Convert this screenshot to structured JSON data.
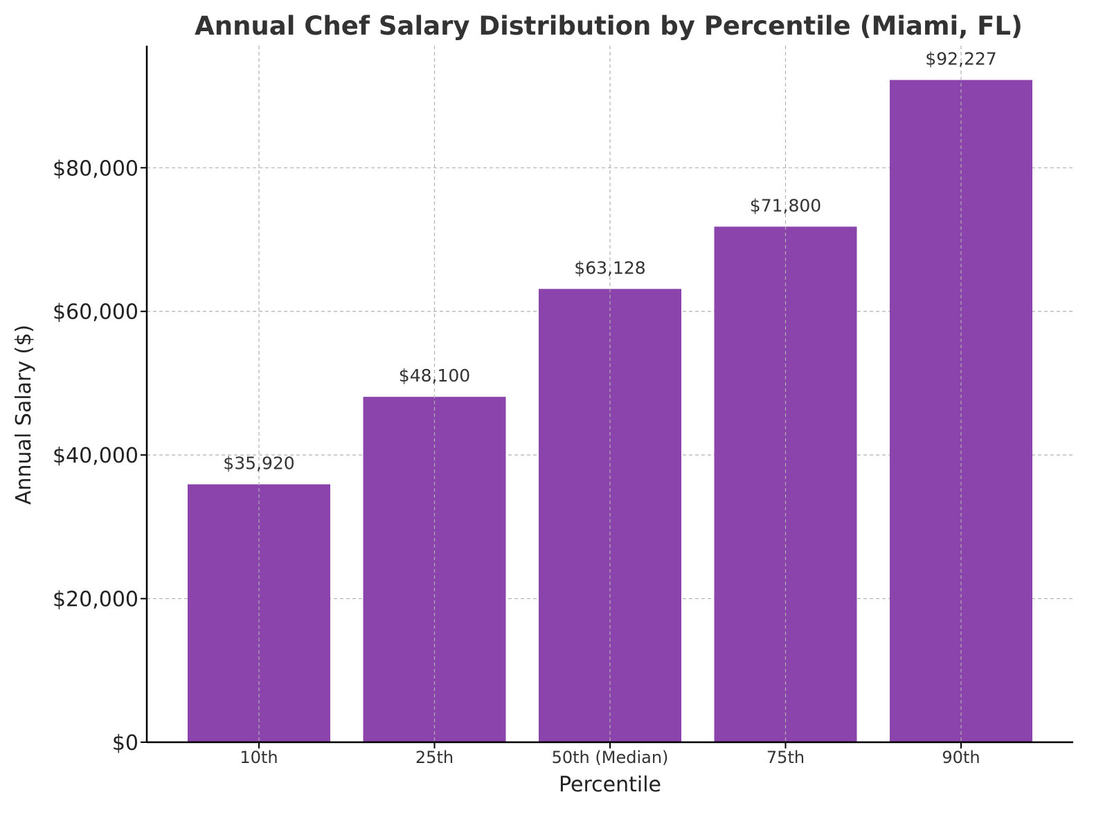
{
  "chart_data": {
    "type": "bar",
    "title": "Annual Chef Salary Distribution by Percentile (Miami, FL)",
    "xlabel": "Percentile",
    "ylabel": "Annual Salary ($)",
    "categories": [
      "10th",
      "25th",
      "50th (Median)",
      "75th",
      "90th"
    ],
    "values": [
      35920,
      48100,
      63128,
      71800,
      92227
    ],
    "data_labels": [
      "$35,920",
      "$48,100",
      "$63,128",
      "$71,800",
      "$92,227"
    ],
    "yticks": [
      0,
      20000,
      40000,
      60000,
      80000
    ],
    "ytick_labels": [
      "$0",
      "$20,000",
      "$40,000",
      "$60,000",
      "$80,000"
    ],
    "ylim": [
      0,
      97000
    ],
    "grid": true,
    "bar_color": "#8b44ac"
  }
}
